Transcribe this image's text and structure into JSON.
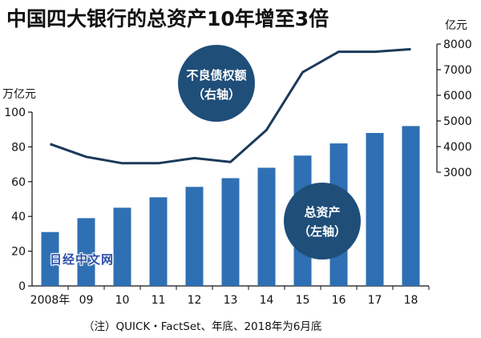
{
  "title": "中国四大银行的总资产10年增至3倍",
  "note": "（注）QUICK・FactSet、年底、2018年为6月底",
  "watermark": "日经中文网",
  "colors": {
    "bar": "#2f6fb3",
    "line": "#1b3a5a",
    "bubble": "#1f4e79",
    "axis": "#111111"
  },
  "chart_data": {
    "type": "bar+line",
    "categories": [
      "2008年",
      "09",
      "10",
      "11",
      "12",
      "13",
      "14",
      "15",
      "16",
      "17",
      "18"
    ],
    "left_axis": {
      "label": "万亿元",
      "ylim": [
        0,
        100
      ],
      "ticks": [
        0,
        20,
        40,
        60,
        80,
        100
      ]
    },
    "right_axis": {
      "label": "亿元",
      "ylim": [
        3000,
        8000
      ],
      "ticks": [
        3000,
        4000,
        5000,
        6000,
        7000,
        8000
      ]
    },
    "series": [
      {
        "name": "总资产（左轴）",
        "type": "bar",
        "axis": "left",
        "values": [
          31,
          39,
          45,
          51,
          57,
          62,
          68,
          75,
          82,
          88,
          92
        ]
      },
      {
        "name": "不良债权额（右轴）",
        "type": "line",
        "axis": "right",
        "values": [
          4100,
          3600,
          3350,
          3350,
          3550,
          3400,
          4650,
          6900,
          7700,
          7700,
          7800
        ]
      }
    ],
    "annotations": [
      {
        "series": 1,
        "lines": [
          "不良债权额",
          "（右轴）"
        ]
      },
      {
        "series": 0,
        "lines": [
          "总资产",
          "（左轴）"
        ]
      }
    ],
    "grid": false,
    "legend": "bubble labels"
  }
}
